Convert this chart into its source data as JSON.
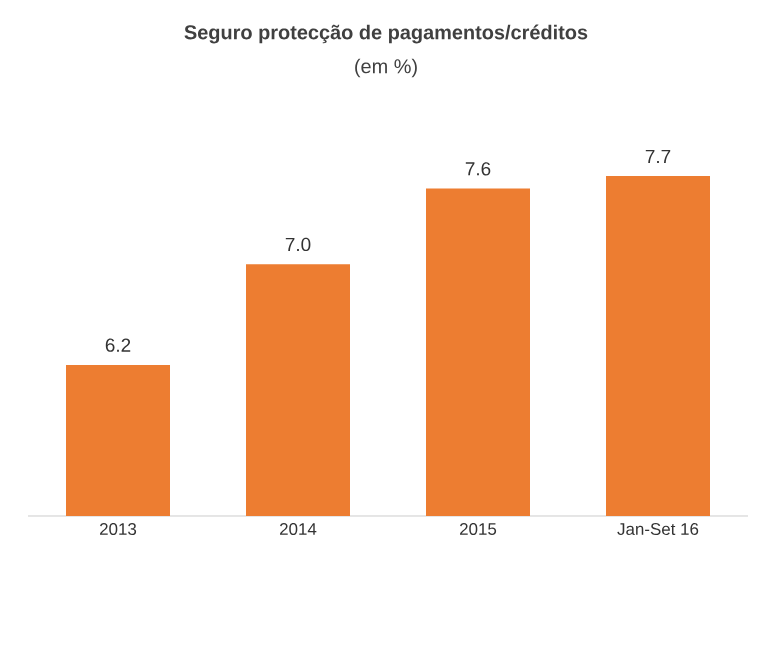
{
  "chart_data": {
    "type": "bar",
    "title": "Seguro protecção de pagamentos/créditos",
    "subtitle": "(em %)",
    "categories": [
      "2013",
      "2014",
      "2015",
      "Jan-Set 16"
    ],
    "values": [
      6.2,
      7.0,
      7.6,
      7.7
    ],
    "color": "#ed7d31",
    "value_labels": [
      "6.2",
      "7.0",
      "7.6",
      "7.7"
    ],
    "ylim": [
      5,
      7.7
    ]
  }
}
